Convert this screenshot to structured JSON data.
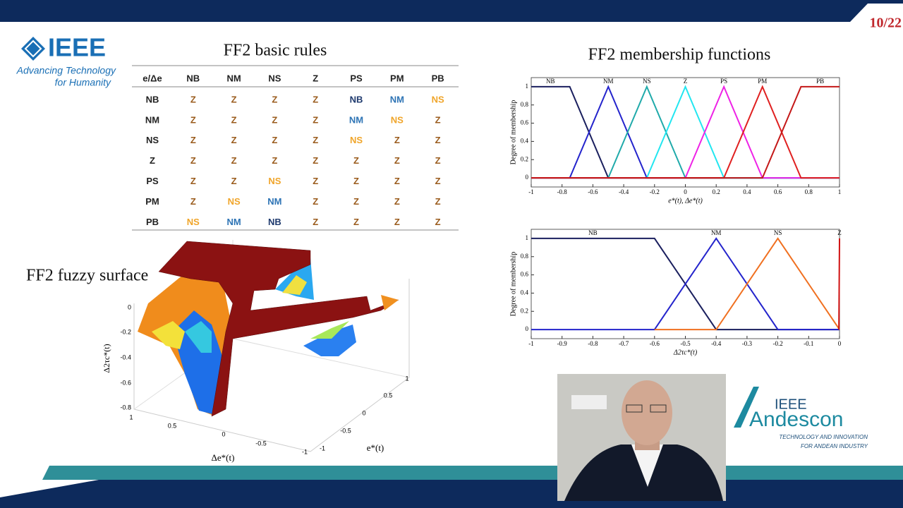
{
  "header": {
    "page": "10/22",
    "logo": "IEEE",
    "tagline": [
      "Advancing Technology",
      "for Humanity"
    ]
  },
  "table": {
    "title": "FF2 basic rules",
    "columns": [
      "e/Δe",
      "NB",
      "NM",
      "NS",
      "Z",
      "PS",
      "PM",
      "PB"
    ],
    "rows": [
      [
        "NB",
        "Z",
        "Z",
        "Z",
        "Z",
        "NB",
        "NM",
        "NS"
      ],
      [
        "NM",
        "Z",
        "Z",
        "Z",
        "Z",
        "NM",
        "NS",
        "Z"
      ],
      [
        "NS",
        "Z",
        "Z",
        "Z",
        "Z",
        "NS",
        "Z",
        "Z"
      ],
      [
        "Z",
        "Z",
        "Z",
        "Z",
        "Z",
        "Z",
        "Z",
        "Z"
      ],
      [
        "PS",
        "Z",
        "Z",
        "NS",
        "Z",
        "Z",
        "Z",
        "Z"
      ],
      [
        "PM",
        "Z",
        "NS",
        "NM",
        "Z",
        "Z",
        "Z",
        "Z"
      ],
      [
        "PB",
        "NS",
        "NM",
        "NB",
        "Z",
        "Z",
        "Z",
        "Z"
      ]
    ],
    "cell_colors": {
      "Z": "#9a5b1c",
      "NB": "#1f3a6e",
      "NM": "#2e74b5",
      "NS": "#f0a52a"
    }
  },
  "membership_title": "FF2 membership functions",
  "chart_data": [
    {
      "type": "line",
      "xlabel": "e*(t), Δe*(t)",
      "ylabel": "Degree of membership",
      "xlim": [
        -1,
        1
      ],
      "ylim": [
        -0.1,
        1.1
      ],
      "xticks": [
        -1,
        -0.8,
        -0.6,
        -0.4,
        -0.2,
        0,
        0.2,
        0.4,
        0.6,
        0.8,
        1
      ],
      "yticks": [
        0,
        0.2,
        0.4,
        0.6,
        0.8,
        1
      ],
      "series": [
        {
          "name": "NB",
          "color": "#1a1f5e",
          "x": [
            -1,
            -0.75,
            -0.5,
            1
          ],
          "values": [
            1,
            1,
            0,
            0
          ]
        },
        {
          "name": "NM",
          "color": "#2424cc",
          "x": [
            -1,
            -0.75,
            -0.5,
            -0.25,
            1
          ],
          "values": [
            0,
            0,
            1,
            0,
            0
          ]
        },
        {
          "name": "NS",
          "color": "#20aaaa",
          "x": [
            -1,
            -0.5,
            -0.25,
            0,
            1
          ],
          "values": [
            0,
            0,
            1,
            0,
            0
          ]
        },
        {
          "name": "Z",
          "color": "#22e6f0",
          "x": [
            -1,
            -0.25,
            0,
            0.25,
            1
          ],
          "values": [
            0,
            0,
            1,
            0,
            0
          ]
        },
        {
          "name": "PS",
          "color": "#ee22e6",
          "x": [
            -1,
            0,
            0.25,
            0.5,
            1
          ],
          "values": [
            0,
            0,
            1,
            0,
            0
          ]
        },
        {
          "name": "PM",
          "color": "#e02020",
          "x": [
            -1,
            0.25,
            0.5,
            0.75,
            1
          ],
          "values": [
            0,
            0,
            1,
            0,
            0
          ]
        },
        {
          "name": "PB",
          "color": "#c41818",
          "x": [
            -1,
            0.5,
            0.75,
            1
          ],
          "values": [
            0,
            0,
            1,
            1
          ]
        }
      ]
    },
    {
      "type": "line",
      "xlabel": "Δ2τc*(t)",
      "ylabel": "Degree of membership",
      "xlim": [
        -1,
        0
      ],
      "ylim": [
        -0.1,
        1.1
      ],
      "xticks": [
        -1,
        -0.9,
        -0.8,
        -0.7,
        -0.6,
        -0.5,
        -0.4,
        -0.3,
        -0.2,
        -0.1,
        0
      ],
      "yticks": [
        0,
        0.2,
        0.4,
        0.6,
        0.8,
        1
      ],
      "series": [
        {
          "name": "NB",
          "color": "#1a1f5e",
          "x": [
            -1,
            -0.6,
            -0.4,
            0
          ],
          "values": [
            1,
            1,
            0,
            0
          ]
        },
        {
          "name": "NM",
          "color": "#2424cc",
          "x": [
            -1,
            -0.6,
            -0.4,
            -0.2,
            0
          ],
          "values": [
            0,
            0,
            1,
            0,
            0
          ]
        },
        {
          "name": "NS",
          "color": "#f07020",
          "x": [
            -0.6,
            -0.4,
            -0.2,
            0
          ],
          "values": [
            0,
            0,
            1,
            0
          ]
        },
        {
          "name": "Z",
          "color": "#d01010",
          "x": [
            -0.002,
            0
          ],
          "values": [
            0,
            1
          ]
        }
      ]
    }
  ],
  "surface": {
    "title": "FF2 fuzzy surface",
    "zlabel": "Δ2τc*(t)",
    "xlabel": "Δe*(t)",
    "ylabel": "e*(t)",
    "zticks": [
      0,
      -0.2,
      -0.4,
      -0.6,
      -0.8
    ],
    "xticks": [
      1,
      0.5,
      0,
      -0.5,
      -1
    ],
    "yticks": [
      -1,
      -0.5,
      0,
      0.5,
      1
    ]
  },
  "sponsor": {
    "logo": "IEEE",
    "name": "Andescon",
    "tagline": [
      "TECHNOLOGY AND INNOVATION",
      "FOR ANDEAN INDUSTRY"
    ]
  }
}
